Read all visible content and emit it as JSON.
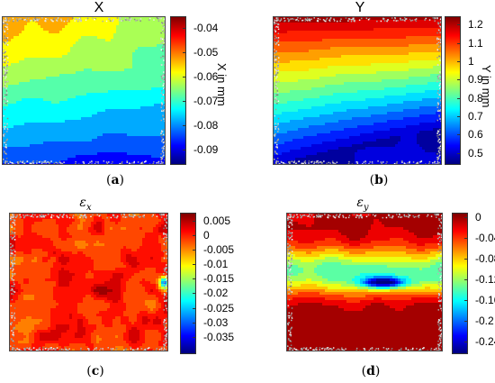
{
  "figure": {
    "captions": [
      {
        "open": "(",
        "letter": "a",
        "close": ")"
      },
      {
        "open": "(",
        "letter": "b",
        "close": ")"
      },
      {
        "open": "(",
        "letter": "c",
        "close": ")"
      },
      {
        "open": "(",
        "letter": "d",
        "close": ")"
      }
    ]
  },
  "chart_data": [
    {
      "type": "heatmap",
      "title": "X",
      "colorbar_label": "X in mm",
      "colorbar_ticks": [
        "-0.04",
        "-0.05",
        "-0.06",
        "-0.07",
        "-0.08",
        "-0.09"
      ],
      "color_range": [
        -0.095,
        -0.035
      ],
      "field_trend": "top rows about -0.05, bottom rows about -0.09; bands tilt downward to the right",
      "colormap": [
        "#00007f",
        "#0000ff",
        "#007fff",
        "#00ffff",
        "#7fff7f",
        "#ffff00",
        "#ff7f00",
        "#ff0000",
        "#7f0000"
      ]
    },
    {
      "type": "heatmap",
      "title": "Y",
      "colorbar_label": "Y in mm",
      "colorbar_ticks": [
        "1.2",
        "1.1",
        "1",
        "0.9",
        "0.8",
        "0.7",
        "0.6",
        "0.5"
      ],
      "color_range": [
        0.45,
        1.25
      ],
      "field_trend": "top rows about 1.2, bottom rows about 0.5; bands tilt upward to the right",
      "colormap": [
        "#00007f",
        "#0000ff",
        "#007fff",
        "#00ffff",
        "#7fff7f",
        "#ffff00",
        "#ff7f00",
        "#ff0000",
        "#7f0000"
      ]
    },
    {
      "type": "heatmap",
      "title": "ε",
      "title_sub": "x",
      "colorbar_label": "",
      "colorbar_ticks": [
        "0.005",
        "0",
        "-0.005",
        "-0.01",
        "-0.015",
        "-0.02",
        "-0.025",
        "-0.03",
        "-0.035"
      ],
      "color_range": [
        -0.04,
        0.008
      ],
      "field_trend": "mostly between -0.005 and 0.005 (red and orange patches), small cyan/blue spot at right edge",
      "colormap": [
        "#00007f",
        "#0000ff",
        "#007fff",
        "#00ffff",
        "#7fff7f",
        "#ffff00",
        "#ff7f00",
        "#ff0000",
        "#7f0000"
      ]
    },
    {
      "type": "heatmap",
      "title": "ε",
      "title_sub": "y",
      "colorbar_label": "",
      "colorbar_ticks": [
        "0",
        "-0.04",
        "-0.08",
        "-0.12",
        "-0.16",
        "-0.2",
        "-0.24"
      ],
      "color_range": [
        -0.26,
        0.01
      ],
      "field_trend": "near 0 at top and bottom, band of lower values across the middle with deep blue spot near center",
      "colormap": [
        "#00007f",
        "#0000ff",
        "#007fff",
        "#00ffff",
        "#7fff7f",
        "#ffff00",
        "#ff7f00",
        "#ff0000",
        "#7f0000"
      ]
    }
  ]
}
